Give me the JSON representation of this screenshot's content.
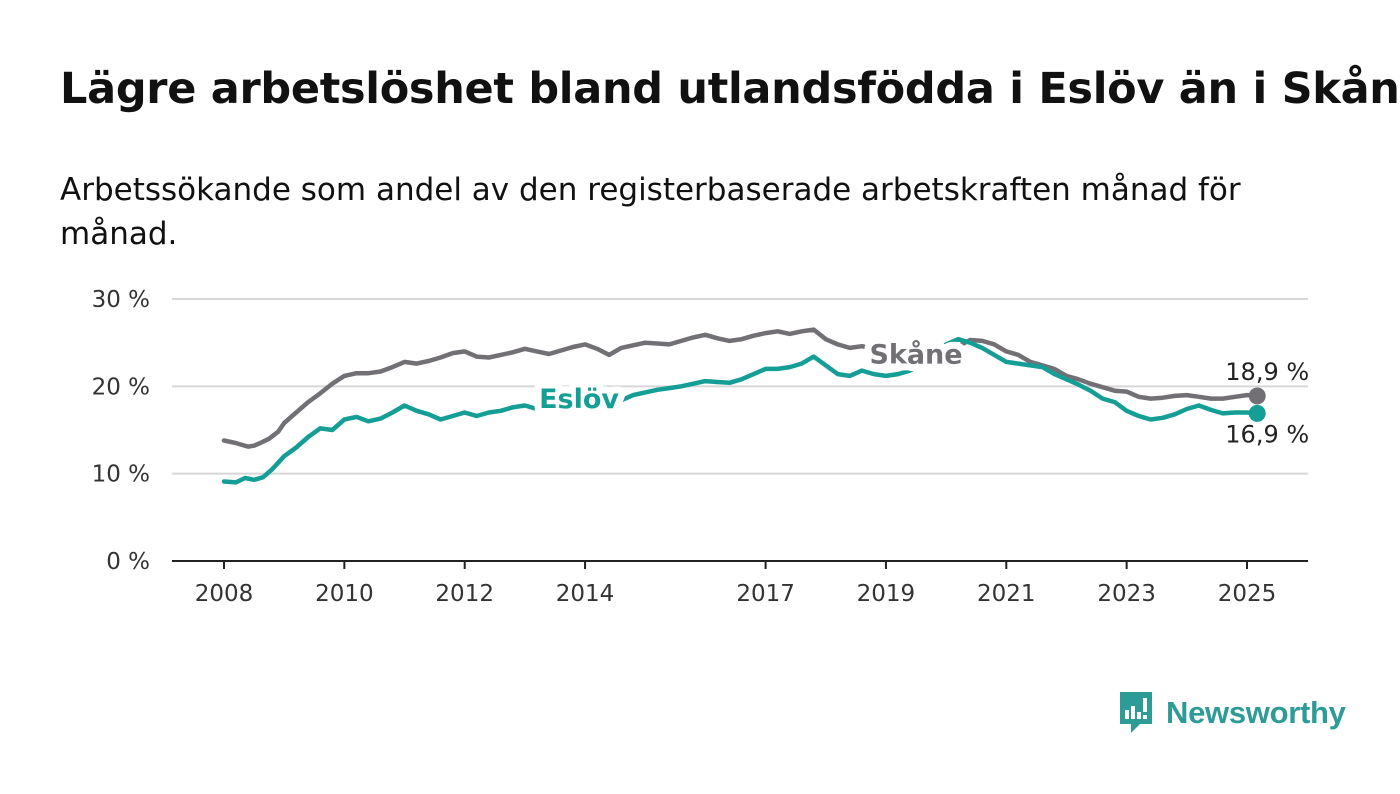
{
  "title": "Lägre arbetslöshet bland utlandsfödda i Eslöv än i Skåne",
  "subtitle": "Arbetssökande som andel av den registerbaserade arbetskraften månad för månad.",
  "brand": {
    "name": "Newsworthy",
    "color": "#2e9c96",
    "icon": "newsworthy-logo-icon"
  },
  "chart_data": {
    "type": "line",
    "title": "Lägre arbetslöshet bland utlandsfödda i Eslöv än i Skåne",
    "subtitle": "Arbetssökande som andel av den registerbaserade arbetskraften månad för månad.",
    "xlabel": "",
    "ylabel": "",
    "xlim": [
      2007.5,
      2025.9
    ],
    "ylim": [
      0,
      30
    ],
    "y_ticks": [
      0,
      10,
      20,
      30
    ],
    "y_tick_labels": [
      "0 %",
      "10 %",
      "20 %",
      "30 %"
    ],
    "x_ticks": [
      2008,
      2010,
      2012,
      2014,
      2017,
      2019,
      2021,
      2023,
      2025
    ],
    "x_tick_labels": [
      "2008",
      "2010",
      "2012",
      "2014",
      "2017",
      "2019",
      "2021",
      "2023",
      "2025"
    ],
    "grid": "horizontal",
    "legend": "inline labels",
    "series": [
      {
        "name": "Skåne",
        "color": "#727075",
        "end_label": "18,9 %",
        "x": [
          2008.0,
          2008.2,
          2008.4,
          2008.5,
          2008.6,
          2008.75,
          2008.9,
          2009.0,
          2009.2,
          2009.4,
          2009.6,
          2009.8,
          2010.0,
          2010.2,
          2010.4,
          2010.6,
          2010.8,
          2011.0,
          2011.2,
          2011.4,
          2011.6,
          2011.8,
          2012.0,
          2012.2,
          2012.4,
          2012.6,
          2012.8,
          2013.0,
          2013.2,
          2013.4,
          2013.6,
          2013.8,
          2014.0,
          2014.2,
          2014.4,
          2014.6,
          2014.8,
          2015.0,
          2015.2,
          2015.4,
          2015.6,
          2015.8,
          2016.0,
          2016.2,
          2016.4,
          2016.6,
          2016.8,
          2017.0,
          2017.2,
          2017.4,
          2017.6,
          2017.8,
          2018.0,
          2018.2,
          2018.4,
          2018.6,
          2018.8,
          2019.0,
          2019.2,
          2019.4,
          2019.6,
          2019.8,
          2020.0,
          2020.2,
          2020.4,
          2020.6,
          2020.8,
          2021.0,
          2021.2,
          2021.4,
          2021.6,
          2021.8,
          2022.0,
          2022.2,
          2022.4,
          2022.6,
          2022.8,
          2023.0,
          2023.2,
          2023.4,
          2023.6,
          2023.8,
          2024.0,
          2024.2,
          2024.4,
          2024.6,
          2024.8,
          2025.0,
          2025.17
        ],
        "values": [
          13.8,
          13.5,
          13.1,
          13.2,
          13.5,
          14.0,
          14.8,
          15.8,
          17.0,
          18.2,
          19.2,
          20.3,
          21.2,
          21.5,
          21.5,
          21.7,
          22.2,
          22.8,
          22.6,
          22.9,
          23.3,
          23.8,
          24.0,
          23.4,
          23.3,
          23.6,
          23.9,
          24.3,
          24.0,
          23.7,
          24.1,
          24.5,
          24.8,
          24.3,
          23.6,
          24.4,
          24.7,
          25.0,
          24.9,
          24.8,
          25.2,
          25.6,
          25.9,
          25.5,
          25.2,
          25.4,
          25.8,
          26.1,
          26.3,
          26.0,
          26.3,
          26.5,
          25.4,
          24.8,
          24.4,
          24.6,
          24.3,
          23.0,
          22.6,
          22.5,
          22.6,
          23.0,
          23.6,
          24.6,
          25.3,
          25.2,
          24.8,
          24.0,
          23.6,
          22.8,
          22.4,
          22.0,
          21.2,
          20.8,
          20.3,
          19.9,
          19.5,
          19.4,
          18.8,
          18.6,
          18.7,
          18.9,
          19.0,
          18.8,
          18.6,
          18.6,
          18.8,
          19.0,
          18.9
        ]
      },
      {
        "name": "Eslöv",
        "color": "#149e96",
        "end_label": "16,9 %",
        "x": [
          2008.0,
          2008.2,
          2008.35,
          2008.5,
          2008.65,
          2008.8,
          2009.0,
          2009.2,
          2009.4,
          2009.6,
          2009.8,
          2010.0,
          2010.2,
          2010.4,
          2010.6,
          2010.8,
          2011.0,
          2011.2,
          2011.4,
          2011.6,
          2011.8,
          2012.0,
          2012.2,
          2012.4,
          2012.6,
          2012.8,
          2013.0,
          2013.2,
          2013.4,
          2013.6,
          2013.8,
          2014.0,
          2014.2,
          2014.4,
          2014.6,
          2014.8,
          2015.0,
          2015.2,
          2015.4,
          2015.6,
          2015.8,
          2016.0,
          2016.2,
          2016.4,
          2016.6,
          2016.8,
          2017.0,
          2017.2,
          2017.4,
          2017.6,
          2017.8,
          2018.0,
          2018.2,
          2018.4,
          2018.6,
          2018.8,
          2019.0,
          2019.2,
          2019.4,
          2019.6,
          2019.8,
          2020.0,
          2020.2,
          2020.4,
          2020.6,
          2020.8,
          2021.0,
          2021.2,
          2021.4,
          2021.6,
          2021.8,
          2022.0,
          2022.2,
          2022.4,
          2022.6,
          2022.8,
          2023.0,
          2023.2,
          2023.4,
          2023.6,
          2023.8,
          2024.0,
          2024.2,
          2024.4,
          2024.6,
          2024.8,
          2025.0,
          2025.17
        ],
        "values": [
          9.1,
          9.0,
          9.5,
          9.3,
          9.6,
          10.5,
          12.0,
          13.0,
          14.2,
          15.2,
          15.0,
          16.2,
          16.5,
          16.0,
          16.3,
          17.0,
          17.8,
          17.2,
          16.8,
          16.2,
          16.6,
          17.0,
          16.6,
          17.0,
          17.2,
          17.6,
          17.8,
          17.4,
          17.0,
          17.2,
          17.4,
          17.8,
          18.0,
          17.6,
          18.4,
          19.0,
          19.3,
          19.6,
          19.8,
          20.0,
          20.3,
          20.6,
          20.5,
          20.4,
          20.8,
          21.4,
          22.0,
          22.0,
          22.2,
          22.6,
          23.4,
          22.4,
          21.4,
          21.2,
          21.8,
          21.4,
          21.2,
          21.4,
          21.8,
          22.6,
          23.6,
          24.8,
          25.4,
          25.0,
          24.4,
          23.6,
          22.8,
          22.6,
          22.4,
          22.2,
          21.4,
          20.8,
          20.2,
          19.5,
          18.6,
          18.2,
          17.2,
          16.6,
          16.2,
          16.4,
          16.8,
          17.4,
          17.8,
          17.3,
          16.9,
          17.0,
          17.0,
          16.9
        ]
      }
    ]
  }
}
